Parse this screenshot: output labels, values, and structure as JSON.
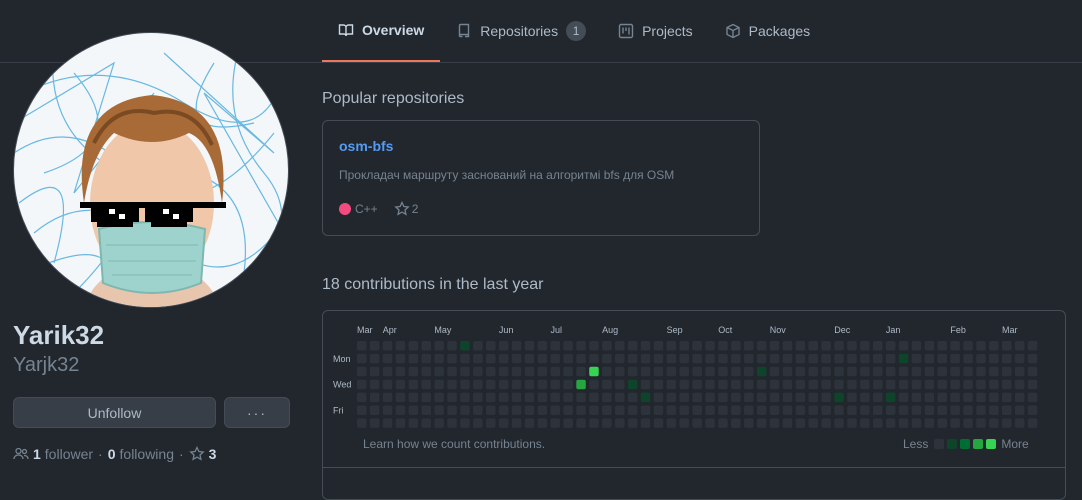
{
  "tabs": [
    {
      "label": "Overview",
      "icon": "book-icon",
      "active": true
    },
    {
      "label": "Repositories",
      "icon": "repo-icon",
      "count": "1"
    },
    {
      "label": "Projects",
      "icon": "project-icon"
    },
    {
      "label": "Packages",
      "icon": "package-icon"
    }
  ],
  "profile": {
    "name": "Yarik32",
    "login": "Yarjk32",
    "unfollow_label": "Unfollow",
    "more_label": "···",
    "followers_count": "1",
    "followers_label": "follower",
    "separator": "·",
    "following_count": "0",
    "following_label": "following",
    "stars_count": "3"
  },
  "popular": {
    "title": "Popular repositories",
    "repo": {
      "name": "osm-bfs",
      "description": "Прокладач маршруту заснований на алгоритмі bfs для OSM",
      "language": "C++",
      "language_color": "#f34b7d",
      "stars": "2"
    }
  },
  "contributions": {
    "title": "18 contributions in the last year",
    "months": [
      "Mar",
      "Apr",
      "May",
      "Jun",
      "Jul",
      "Aug",
      "Sep",
      "Oct",
      "Nov",
      "Dec",
      "Jan",
      "Feb",
      "Mar"
    ],
    "month_week_index": [
      0,
      2,
      6,
      11,
      15,
      19,
      24,
      28,
      32,
      37,
      41,
      46,
      50
    ],
    "days": [
      "Mon",
      "Wed",
      "Fri"
    ],
    "weeks": 53,
    "active_cells": [
      {
        "week": 8,
        "day": 0,
        "level": 1
      },
      {
        "week": 17,
        "day": 3,
        "level": 3
      },
      {
        "week": 18,
        "day": 2,
        "level": 4
      },
      {
        "week": 21,
        "day": 3,
        "level": 1
      },
      {
        "week": 22,
        "day": 4,
        "level": 1
      },
      {
        "week": 31,
        "day": 2,
        "level": 1
      },
      {
        "week": 37,
        "day": 4,
        "level": 1
      },
      {
        "week": 41,
        "day": 4,
        "level": 1
      },
      {
        "week": 42,
        "day": 1,
        "level": 1
      }
    ],
    "learn_text": "Learn how we count contributions.",
    "less_label": "Less",
    "more_label": "More",
    "level_colors": [
      "#2d333b",
      "#0e4429",
      "#006d32",
      "#26a641",
      "#39d353"
    ]
  }
}
